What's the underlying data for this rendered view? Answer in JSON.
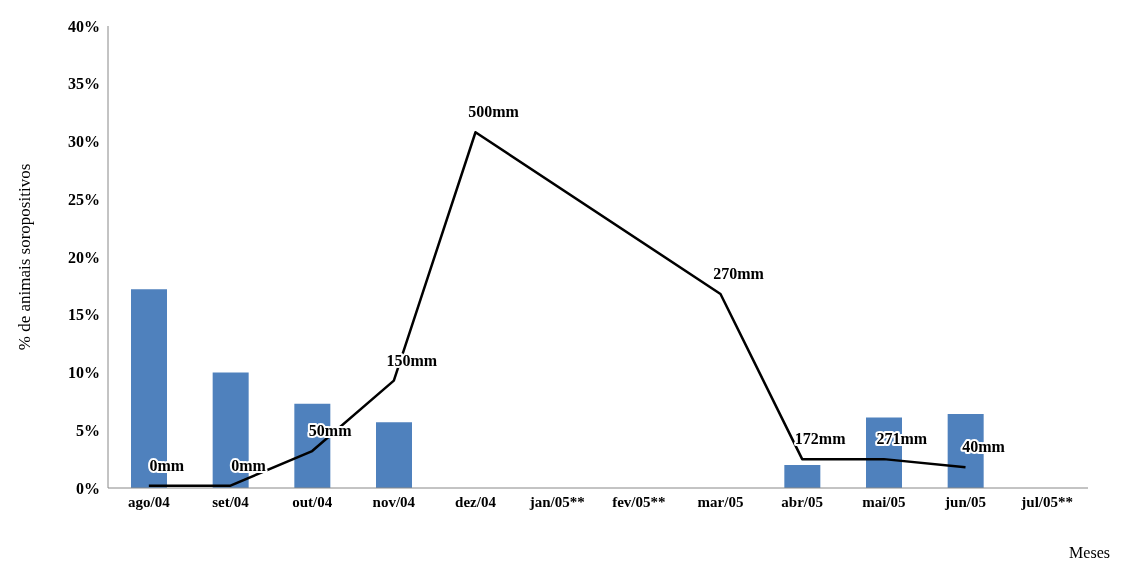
{
  "chart_data": {
    "type": "bar",
    "ylabel": "% de animais soropositivos",
    "xlabel": "Meses",
    "categories": [
      "ago/04",
      "set/04",
      "out/04",
      "nov/04",
      "dez/04",
      "jan/05**",
      "fev/05**",
      "mar/05",
      "abr/05",
      "mai/05",
      "jun/05",
      "jul/05**"
    ],
    "series": [
      {
        "color": "#4f81bd",
        "values": [
          17.2,
          10.0,
          7.3,
          5.7,
          null,
          null,
          null,
          null,
          2.0,
          6.1,
          6.4,
          null
        ]
      },
      {
        "type": "line",
        "color": "#000000",
        "values": [
          0.2,
          0.2,
          3.2,
          9.3,
          30.8,
          null,
          null,
          16.8,
          2.5,
          2.5,
          1.8,
          null
        ]
      }
    ],
    "ylim": [
      0,
      40
    ],
    "yticks": [
      {
        "value": 0,
        "label": "0%"
      },
      {
        "value": 5,
        "label": "5%"
      },
      {
        "value": 10,
        "label": "10%"
      },
      {
        "value": 15,
        "label": "15%"
      },
      {
        "value": 20,
        "label": "20%"
      },
      {
        "value": 25,
        "label": "25%"
      },
      {
        "value": 30,
        "label": "30%"
      },
      {
        "value": 35,
        "label": "35%"
      },
      {
        "value": 40,
        "label": "40%"
      }
    ],
    "annotations": [
      {
        "text": "0mm",
        "x": "ago/04",
        "y": 0.2
      },
      {
        "text": "0mm",
        "x": "set/04",
        "y": 0.2
      },
      {
        "text": "50mm",
        "x": "out/04",
        "y": 3.2
      },
      {
        "text": "150mm",
        "x": "nov/04",
        "y": 9.3
      },
      {
        "text": "500mm",
        "x": "dez/04",
        "y": 30.8
      },
      {
        "text": "270mm",
        "x": "mar/05",
        "y": 16.8
      },
      {
        "text": "172mm",
        "x": "abr/05",
        "y": 2.5
      },
      {
        "text": "271mm",
        "x": "mai/05",
        "y": 2.5
      },
      {
        "text": "40mm",
        "x": "jun/05",
        "y": 1.8
      }
    ],
    "grid": false,
    "legend": false,
    "marker": "none",
    "line_style": "solid"
  }
}
